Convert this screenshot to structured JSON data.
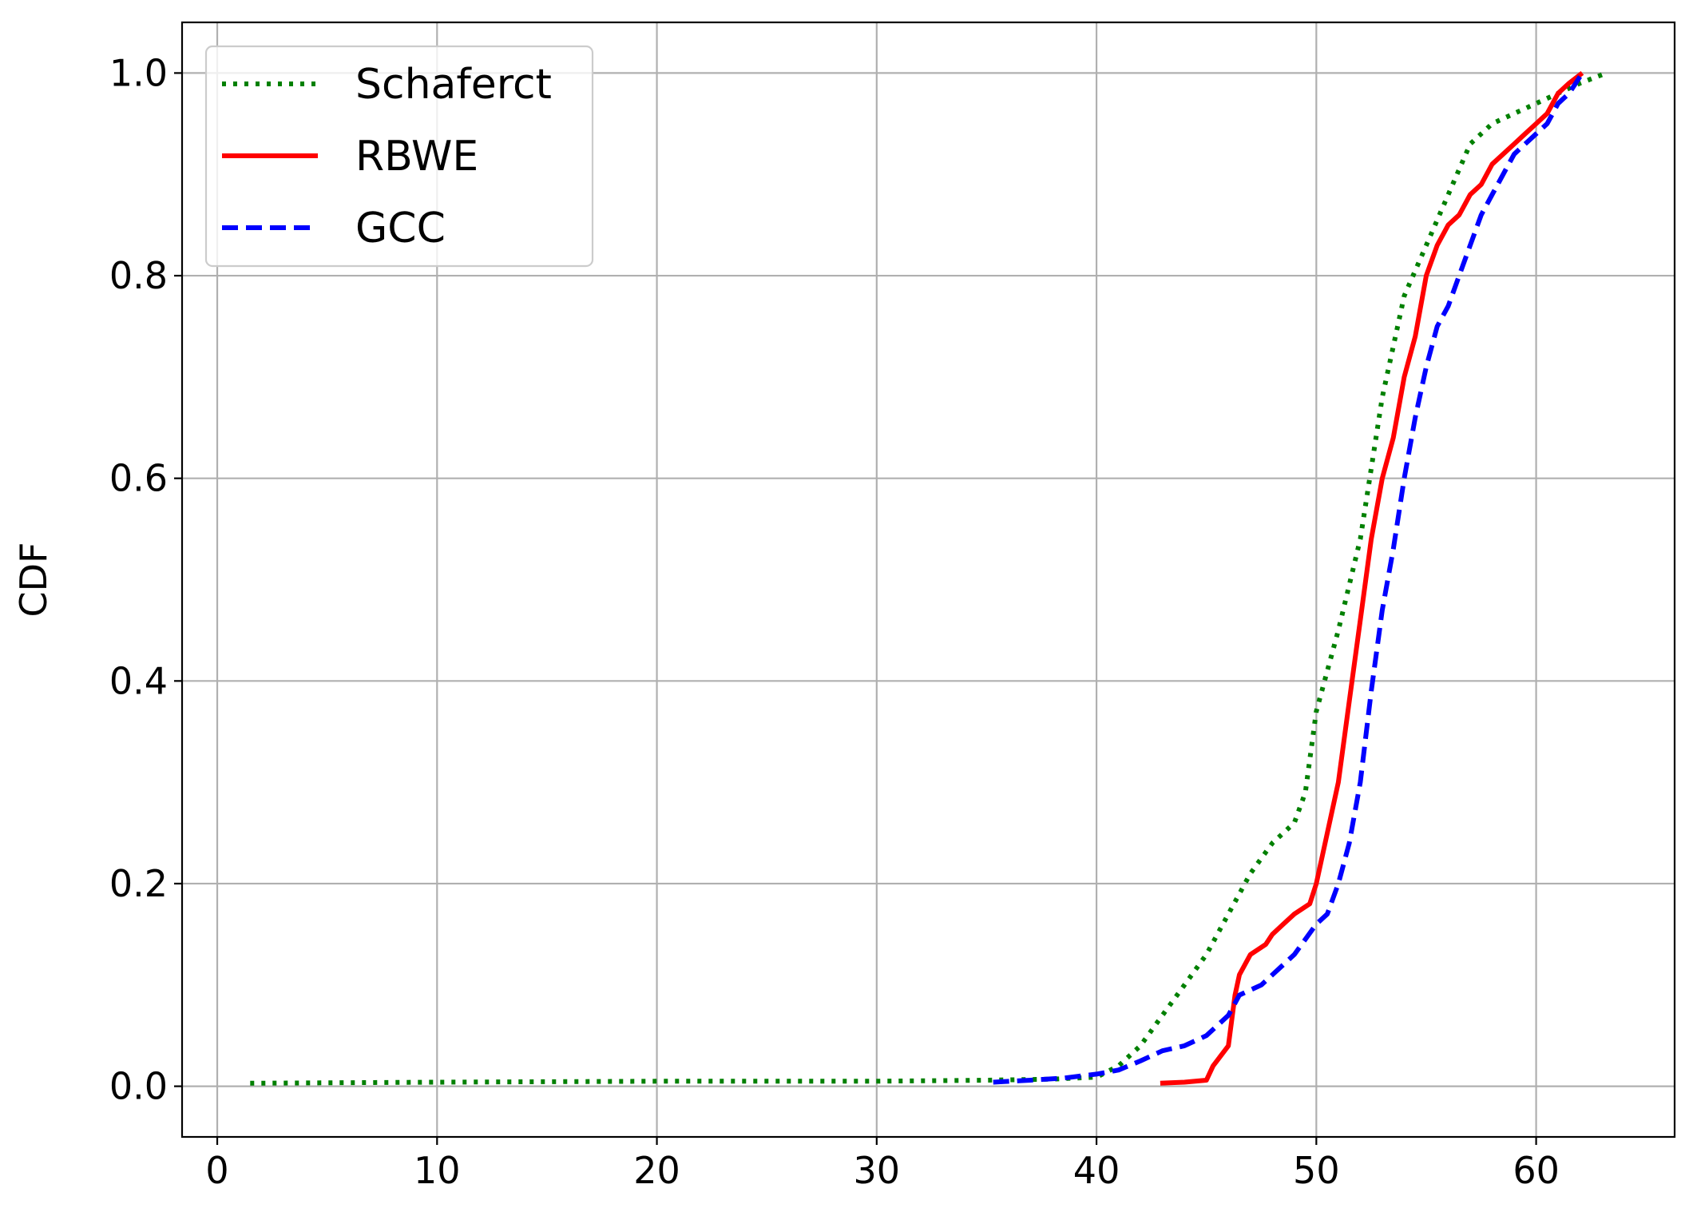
{
  "chart_data": {
    "type": "line",
    "title": "",
    "xlabel": "",
    "ylabel": "CDF",
    "xlim": [
      -1.6,
      66.3
    ],
    "ylim": [
      -0.05,
      1.05
    ],
    "xticks": [
      0,
      10,
      20,
      30,
      40,
      50,
      60
    ],
    "yticks": [
      0.0,
      0.2,
      0.4,
      0.6,
      0.8,
      1.0
    ],
    "xtick_labels": [
      "0",
      "10",
      "20",
      "30",
      "40",
      "50",
      "60"
    ],
    "ytick_labels": [
      "0.0",
      "0.2",
      "0.4",
      "0.6",
      "0.8",
      "1.0"
    ],
    "grid": true,
    "legend_position": "top-left",
    "series": [
      {
        "name": "Schaferct",
        "color": "#008000",
        "style": "dotted",
        "x": [
          1.5,
          10,
          20,
          30,
          35,
          38,
          40,
          41,
          42,
          43,
          44,
          45,
          46,
          47,
          48,
          49,
          49.5,
          50,
          51,
          52,
          53,
          54,
          55,
          56,
          57,
          58,
          59,
          60,
          61,
          62,
          63.2
        ],
        "y": [
          0.003,
          0.004,
          0.005,
          0.005,
          0.006,
          0.007,
          0.009,
          0.02,
          0.04,
          0.07,
          0.1,
          0.13,
          0.17,
          0.21,
          0.24,
          0.26,
          0.29,
          0.37,
          0.45,
          0.54,
          0.68,
          0.78,
          0.83,
          0.88,
          0.93,
          0.95,
          0.96,
          0.97,
          0.98,
          0.99,
          1.0
        ]
      },
      {
        "name": "RBWE",
        "color": "#ff0000",
        "style": "solid",
        "x": [
          42.9,
          44,
          45,
          45.3,
          46,
          46.3,
          46.5,
          47,
          47.7,
          48,
          48.5,
          49,
          49.7,
          50,
          50.5,
          51,
          51.5,
          52,
          52.5,
          53,
          53.5,
          54,
          54.5,
          55,
          55.5,
          56,
          56.5,
          57,
          57.5,
          58,
          58.5,
          59,
          59.5,
          60,
          60.5,
          61,
          61.5,
          62.1
        ],
        "y": [
          0.003,
          0.004,
          0.006,
          0.02,
          0.04,
          0.09,
          0.11,
          0.13,
          0.14,
          0.15,
          0.16,
          0.17,
          0.18,
          0.2,
          0.25,
          0.3,
          0.38,
          0.46,
          0.54,
          0.6,
          0.64,
          0.7,
          0.74,
          0.8,
          0.83,
          0.85,
          0.86,
          0.88,
          0.89,
          0.91,
          0.92,
          0.93,
          0.94,
          0.95,
          0.96,
          0.98,
          0.99,
          1.0
        ]
      },
      {
        "name": "GCC",
        "color": "#0000ff",
        "style": "dashed",
        "x": [
          35.3,
          37,
          38.5,
          40,
          41,
          42,
          43,
          44,
          45,
          46,
          46.5,
          47,
          47.5,
          48,
          49,
          50,
          50.5,
          51,
          51.5,
          52,
          52.5,
          53,
          53.5,
          54,
          54.5,
          55,
          55.5,
          56,
          56.5,
          57,
          57.5,
          58,
          58.5,
          59,
          59.5,
          60,
          60.5,
          61,
          61.5,
          62.1
        ],
        "y": [
          0.004,
          0.006,
          0.008,
          0.012,
          0.016,
          0.025,
          0.035,
          0.04,
          0.05,
          0.07,
          0.09,
          0.095,
          0.1,
          0.11,
          0.13,
          0.16,
          0.17,
          0.2,
          0.24,
          0.3,
          0.39,
          0.47,
          0.53,
          0.6,
          0.66,
          0.71,
          0.75,
          0.77,
          0.8,
          0.83,
          0.86,
          0.88,
          0.9,
          0.92,
          0.93,
          0.94,
          0.95,
          0.97,
          0.98,
          1.0
        ]
      }
    ]
  }
}
